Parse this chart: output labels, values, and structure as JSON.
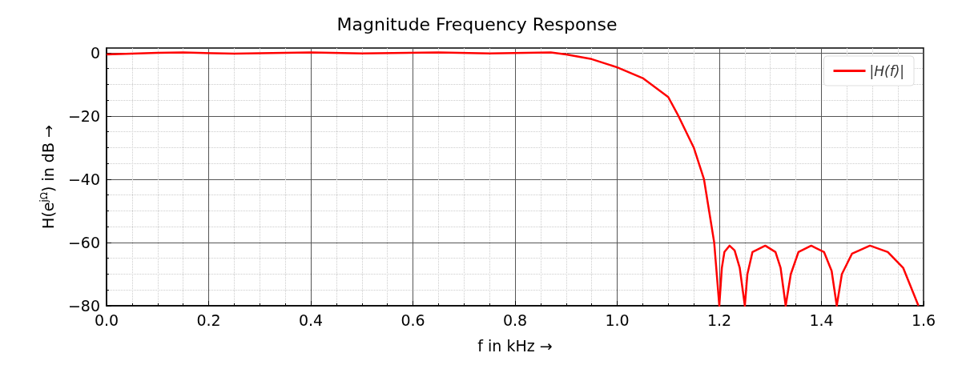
{
  "chart_data": {
    "type": "line",
    "title": "Magnitude Frequency Response",
    "xlabel": "f in kHz →",
    "ylabel": "H(e$^{jΩ}$) in dB →",
    "xlim": [
      0,
      1.6
    ],
    "ylim": [
      -80,
      1.5
    ],
    "xticks": [
      {
        "value": 0,
        "label": "0.0"
      },
      {
        "value": 0.2,
        "label": "0.2"
      },
      {
        "value": 0.4,
        "label": "0.4"
      },
      {
        "value": 0.6,
        "label": "0.6"
      },
      {
        "value": 0.8,
        "label": "0.8"
      },
      {
        "value": 1,
        "label": "1.0"
      },
      {
        "value": 1.2,
        "label": "1.2"
      },
      {
        "value": 1.4,
        "label": "1.4"
      },
      {
        "value": 1.6,
        "label": "1.6"
      }
    ],
    "yticks": [
      {
        "value": -80,
        "label": "−80"
      },
      {
        "value": -60,
        "label": "−60"
      },
      {
        "value": -40,
        "label": "−40"
      },
      {
        "value": -20,
        "label": "−20"
      },
      0
    ],
    "grid": true,
    "legend": "top right",
    "marker": "none",
    "line_style": "solid",
    "series": [
      {
        "name": "|H(f)|",
        "color": "#ff0000",
        "x": [
          0,
          0.1,
          0.15,
          0.25,
          0.4,
          0.5,
          0.65,
          0.75,
          0.87,
          0.9,
          0.95,
          1.0,
          1.05,
          1.1,
          1.12,
          1.15,
          1.17,
          1.19,
          1.2,
          1.205,
          1.21,
          1.22,
          1.23,
          1.24,
          1.25,
          1.255,
          1.265,
          1.29,
          1.31,
          1.32,
          1.33,
          1.34,
          1.355,
          1.38,
          1.405,
          1.42,
          1.43,
          1.44,
          1.46,
          1.495,
          1.53,
          1.56,
          1.59
        ],
        "values": [
          -0.5,
          0,
          0.1,
          -0.3,
          0.1,
          -0.2,
          0.1,
          -0.2,
          0.1,
          -0.5,
          -2,
          -4.6,
          -8,
          -14,
          -20,
          -30,
          -40,
          -60,
          -80,
          -68,
          -63,
          -61,
          -62.5,
          -68,
          -80,
          -70,
          -63,
          -61,
          -63,
          -68,
          -80,
          -70,
          -63,
          -61,
          -63,
          -69,
          -80,
          -70,
          -63.5,
          -61,
          -63,
          -68,
          -80
        ]
      }
    ]
  }
}
